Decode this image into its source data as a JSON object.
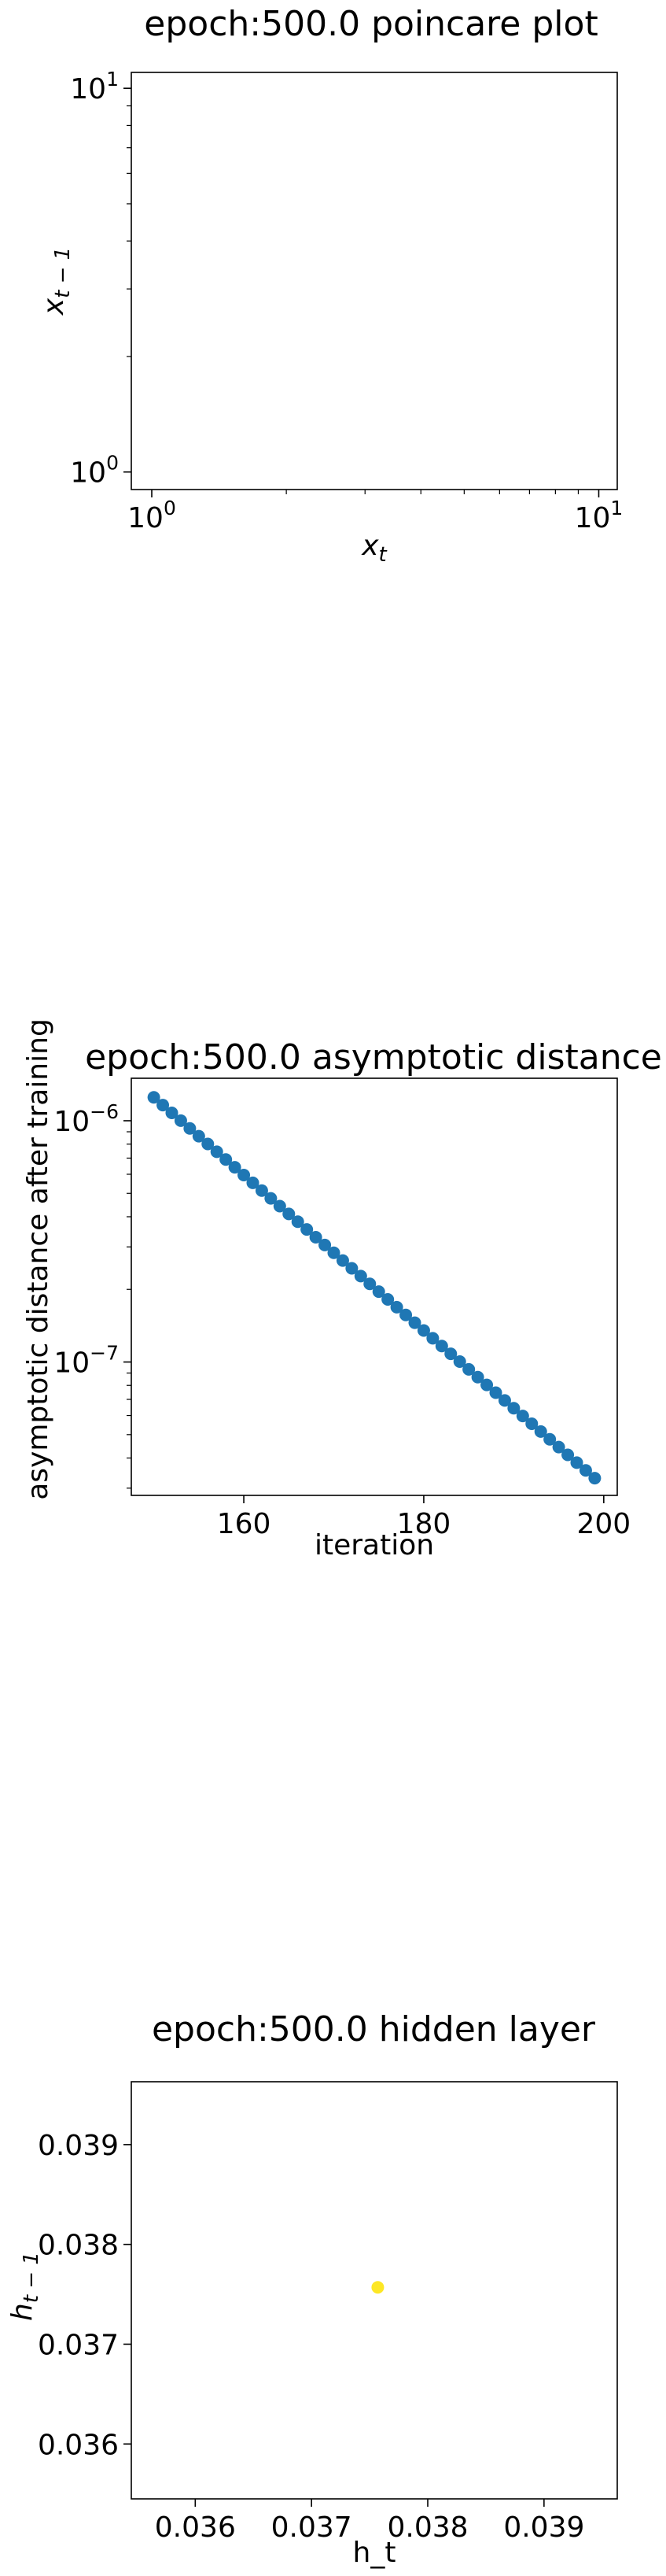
{
  "chart_data": [
    {
      "type": "scatter",
      "title": "epoch:500.0 poincare plot",
      "xlabel_base": "x",
      "xlabel_sub": "t",
      "ylabel_base": "x",
      "ylabel_sub": "t − 1",
      "xscale": "log",
      "yscale": "log",
      "xlim": [
        0.9,
        11
      ],
      "ylim": [
        0.9,
        11
      ],
      "xticks": [
        {
          "value": 1,
          "base": "10",
          "exp": "0"
        },
        {
          "value": 10,
          "base": "10",
          "exp": "1"
        }
      ],
      "yticks": [
        {
          "value": 1,
          "base": "10",
          "exp": "0"
        },
        {
          "value": 10,
          "base": "10",
          "exp": "1"
        }
      ],
      "series": [
        {
          "x": [],
          "y": []
        }
      ],
      "grid": false
    },
    {
      "type": "scatter",
      "title": "epoch:500.0 asymptotic distance",
      "xlabel": "iteration",
      "ylabel": "asymptotic distance after training",
      "xscale": "linear",
      "yscale": "log",
      "xlim": [
        147.5,
        201.5
      ],
      "ylim": [
        2.8e-08,
        1.5e-06
      ],
      "xticks": [
        {
          "value": 160,
          "label": "160"
        },
        {
          "value": 180,
          "label": "180"
        },
        {
          "value": 200,
          "label": "200"
        }
      ],
      "yticks": [
        {
          "value": 1e-06,
          "base": "10",
          "exp": "−6"
        },
        {
          "value": 1e-07,
          "base": "10",
          "exp": "−7"
        }
      ],
      "series": [
        {
          "color": "#1f77b4",
          "x_start": 150,
          "x_end": 199,
          "y_start": 1.25e-06,
          "y_end": 3.3e-08
        }
      ],
      "grid": false
    },
    {
      "type": "scatter",
      "title": "epoch:500.0 hidden layer",
      "xlabel": "h_t",
      "ylabel_base": "h",
      "ylabel_sub": "t − 1",
      "xscale": "linear",
      "yscale": "linear",
      "xlim": [
        0.03545,
        0.03963
      ],
      "ylim": [
        0.03545,
        0.03963
      ],
      "xticks": [
        {
          "value": 0.036,
          "label": "0.036"
        },
        {
          "value": 0.037,
          "label": "0.037"
        },
        {
          "value": 0.038,
          "label": "0.038"
        },
        {
          "value": 0.039,
          "label": "0.039"
        }
      ],
      "yticks": [
        {
          "value": 0.036,
          "label": "0.036"
        },
        {
          "value": 0.037,
          "label": "0.037"
        },
        {
          "value": 0.038,
          "label": "0.038"
        },
        {
          "value": 0.039,
          "label": "0.039"
        }
      ],
      "series": [
        {
          "x": [
            0.03757
          ],
          "y": [
            0.03757
          ],
          "color": "#fde725"
        }
      ],
      "grid": false
    }
  ]
}
